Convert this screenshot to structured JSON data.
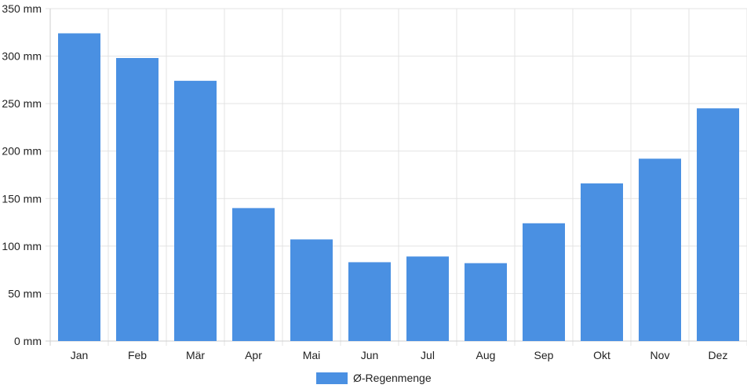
{
  "chart_data": {
    "type": "bar",
    "categories": [
      "Jan",
      "Feb",
      "Mär",
      "Apr",
      "Mai",
      "Jun",
      "Jul",
      "Aug",
      "Sep",
      "Okt",
      "Nov",
      "Dez"
    ],
    "series": [
      {
        "name": "Ø-Regenmenge",
        "values": [
          324,
          298,
          274,
          140,
          107,
          83,
          89,
          82,
          124,
          166,
          192,
          245
        ],
        "color": "#4a90e2"
      }
    ],
    "ylim": [
      0,
      350
    ],
    "yticks": [
      0,
      50,
      100,
      150,
      200,
      250,
      300,
      350
    ],
    "ytick_labels": [
      "0 mm",
      "50 mm",
      "100 mm",
      "150 mm",
      "200 mm",
      "250 mm",
      "300 mm",
      "350 mm"
    ],
    "grid": true,
    "legend": "bottom-center"
  }
}
